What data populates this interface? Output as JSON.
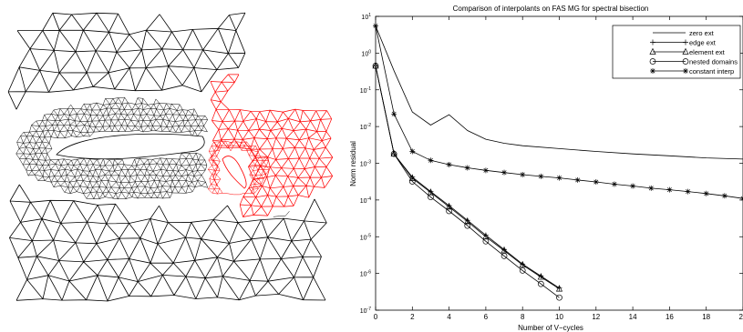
{
  "mesh_colors": {
    "airfoil_mesh": "#000000",
    "flap_mesh": "#ff0000",
    "background": "#ffffff"
  },
  "chart_data": {
    "type": "line",
    "title": "Comparison of interpolants on FAS MG for spectral bisection",
    "xlabel": "Number of V−cycles",
    "ylabel": "Norm residual",
    "xlim": [
      0,
      20
    ],
    "ylim": [
      1e-07,
      10
    ],
    "yscale": "log",
    "grid": false,
    "legend_position": "top-right",
    "x_ticks": [
      "0",
      "2",
      "4",
      "6",
      "8",
      "10",
      "12",
      "14",
      "16",
      "18",
      "20"
    ],
    "y_ticks": [
      {
        "base": "10",
        "exp": "1"
      },
      {
        "base": "10",
        "exp": "0"
      },
      {
        "base": "10",
        "exp": "-1"
      },
      {
        "base": "10",
        "exp": "-2"
      },
      {
        "base": "10",
        "exp": "-3"
      },
      {
        "base": "10",
        "exp": "-4"
      },
      {
        "base": "10",
        "exp": "-5"
      },
      {
        "base": "10",
        "exp": "-6"
      },
      {
        "base": "10",
        "exp": "-7"
      }
    ],
    "series": [
      {
        "name": "zero ext",
        "marker": "none",
        "x": [
          0,
          1,
          2,
          3,
          4,
          5,
          6,
          7,
          8,
          10,
          12,
          14,
          16,
          18,
          20
        ],
        "y": [
          5.5,
          0.33,
          0.025,
          0.011,
          0.021,
          0.0078,
          0.0045,
          0.0035,
          0.003,
          0.0025,
          0.0021,
          0.0018,
          0.0016,
          0.0014,
          0.0013
        ]
      },
      {
        "name": "edge ext",
        "marker": "plus",
        "x": [
          0,
          1,
          2,
          3,
          4,
          5,
          6,
          7,
          8,
          9,
          10
        ],
        "y": [
          0.45,
          0.0018,
          0.00042,
          0.00017,
          7e-05,
          2.8e-05,
          1.1e-05,
          4.5e-06,
          1.8e-06,
          8.5e-07,
          4e-07
        ]
      },
      {
        "name": "element ext",
        "marker": "triangle",
        "x": [
          0,
          1,
          2,
          3,
          4,
          5,
          6,
          7,
          8,
          9,
          10
        ],
        "y": [
          0.45,
          0.0018,
          0.00039,
          0.00016,
          6.5e-05,
          2.6e-05,
          1e-05,
          4.2e-06,
          1.7e-06,
          8e-07,
          3.8e-07
        ]
      },
      {
        "name": "nested domains",
        "marker": "circle",
        "x": [
          0,
          1,
          2,
          3,
          4,
          5,
          6,
          7,
          8,
          9,
          10
        ],
        "y": [
          0.45,
          0.0018,
          0.00032,
          0.00012,
          5e-05,
          2e-05,
          7.5e-06,
          3e-06,
          1.2e-06,
          5.2e-07,
          2.2e-07
        ]
      },
      {
        "name": "constant interp",
        "marker": "star",
        "x": [
          0,
          1,
          2,
          3,
          4,
          5,
          6,
          7,
          8,
          9,
          10,
          11,
          12,
          13,
          14,
          15,
          16,
          17,
          18,
          19,
          20
        ],
        "y": [
          5.5,
          0.022,
          0.0021,
          0.0012,
          0.00092,
          0.00075,
          0.00064,
          0.00056,
          0.00049,
          0.00044,
          0.0004,
          0.00035,
          0.00031,
          0.00027,
          0.00024,
          0.00021,
          0.00019,
          0.00017,
          0.00015,
          0.00013,
          0.00011
        ]
      }
    ]
  }
}
